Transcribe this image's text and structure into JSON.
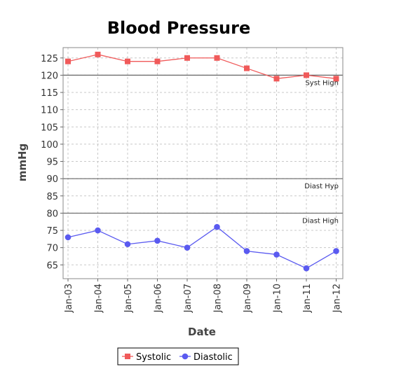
{
  "chart_data": {
    "type": "line",
    "title": "Blood Pressure",
    "xlabel": "Date",
    "ylabel": "mmHg",
    "categories": [
      "Jan-03",
      "Jan-04",
      "Jan-05",
      "Jan-06",
      "Jan-07",
      "Jan-08",
      "Jan-09",
      "Jan-10",
      "Jan-11",
      "Jan-12"
    ],
    "ylim": [
      61,
      128
    ],
    "yticks": [
      65,
      70,
      75,
      80,
      85,
      90,
      95,
      100,
      105,
      110,
      115,
      120,
      125
    ],
    "grid": true,
    "legend_position": "bottom",
    "series": [
      {
        "name": "Systolic",
        "marker": "square",
        "color": "#f05a5a",
        "values": [
          124,
          126,
          124,
          124,
          125,
          125,
          122,
          119,
          120,
          119
        ]
      },
      {
        "name": "Diastolic",
        "marker": "circle",
        "color": "#5a5af0",
        "values": [
          73,
          75,
          71,
          72,
          70,
          76,
          69,
          68,
          64,
          69
        ]
      }
    ],
    "threshold_lines": [
      {
        "label": "Syst High",
        "value": 120
      },
      {
        "label": "Diast Hyp",
        "value": 90
      },
      {
        "label": "Diast High",
        "value": 80
      }
    ]
  }
}
